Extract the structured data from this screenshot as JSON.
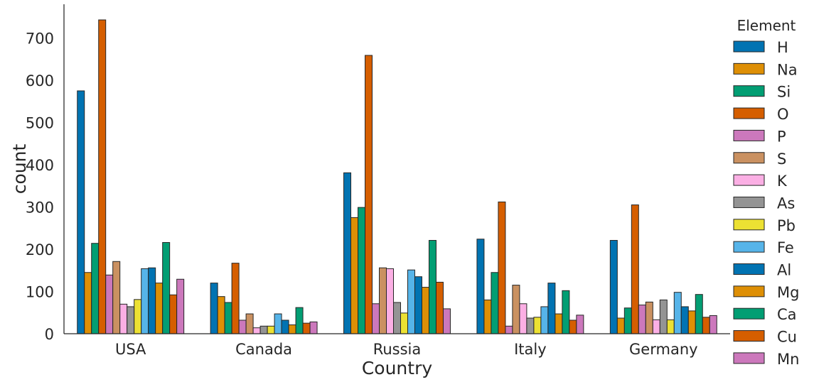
{
  "chart_data": {
    "type": "bar",
    "xlabel": "Country",
    "ylabel": "count",
    "categories": [
      "USA",
      "Canada",
      "Russia",
      "Italy",
      "Germany"
    ],
    "ylim": [
      0,
      780
    ],
    "yticks": [
      0,
      100,
      200,
      300,
      400,
      500,
      600,
      700
    ],
    "grid": false,
    "legend": {
      "title": "Element",
      "placement": "right"
    },
    "series": [
      {
        "name": "H",
        "color": "#0173b2",
        "values": [
          575,
          120,
          381,
          224,
          221
        ]
      },
      {
        "name": "Na",
        "color": "#de8f05",
        "values": [
          145,
          88,
          275,
          80,
          37
        ]
      },
      {
        "name": "Si",
        "color": "#029e73",
        "values": [
          214,
          74,
          299,
          145,
          61
        ]
      },
      {
        "name": "O",
        "color": "#d55e00",
        "values": [
          743,
          167,
          659,
          312,
          305
        ]
      },
      {
        "name": "P",
        "color": "#cc78bc",
        "values": [
          139,
          32,
          71,
          18,
          68
        ]
      },
      {
        "name": "S",
        "color": "#ca9161",
        "values": [
          171,
          47,
          156,
          115,
          75
        ]
      },
      {
        "name": "K",
        "color": "#fbafe4",
        "values": [
          70,
          14,
          154,
          71,
          33
        ]
      },
      {
        "name": "As",
        "color": "#949494",
        "values": [
          64,
          18,
          74,
          37,
          80
        ]
      },
      {
        "name": "Pb",
        "color": "#ece133",
        "values": [
          81,
          18,
          49,
          39,
          33
        ]
      },
      {
        "name": "Fe",
        "color": "#56b4e9",
        "values": [
          154,
          47,
          151,
          64,
          98
        ]
      },
      {
        "name": "Al",
        "color": "#0173b2",
        "values": [
          156,
          32,
          135,
          120,
          64
        ]
      },
      {
        "name": "Mg",
        "color": "#de8f05",
        "values": [
          120,
          21,
          110,
          47,
          54
        ]
      },
      {
        "name": "Ca",
        "color": "#029e73",
        "values": [
          216,
          62,
          221,
          102,
          93
        ]
      },
      {
        "name": "Cu",
        "color": "#d55e00",
        "values": [
          92,
          25,
          122,
          32,
          39
        ]
      },
      {
        "name": "Mn",
        "color": "#cc78bc",
        "values": [
          129,
          28,
          59,
          44,
          43
        ]
      }
    ]
  }
}
